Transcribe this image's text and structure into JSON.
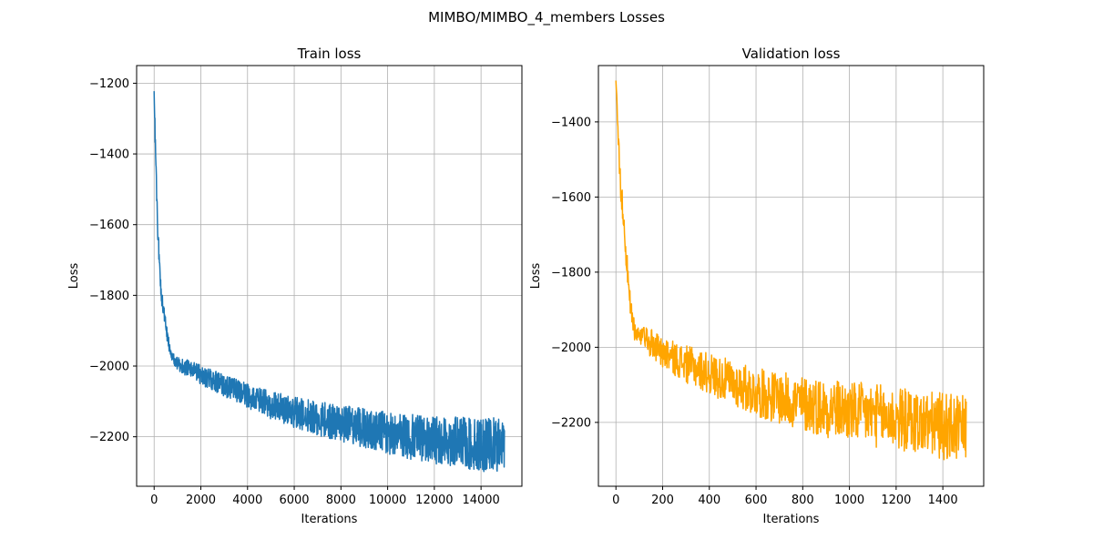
{
  "suptitle": "MIMBO/MIMBO_4_members Losses",
  "chart_data": [
    {
      "type": "line",
      "title": "Train loss",
      "xlabel": "Iterations",
      "ylabel": "Loss",
      "xlim": [
        -750,
        15750
      ],
      "ylim": [
        -2340,
        -1150
      ],
      "x_ticks": [
        0,
        2000,
        4000,
        6000,
        8000,
        10000,
        12000,
        14000
      ],
      "y_ticks": [
        -1200,
        -1400,
        -1600,
        -1800,
        -2000,
        -2200
      ],
      "x_tick_labels": [
        "0",
        "2000",
        "4000",
        "6000",
        "8000",
        "10000",
        "12000",
        "14000"
      ],
      "y_tick_labels": [
        "−1200",
        "−1400",
        "−1600",
        "−1800",
        "−2000",
        "−2200"
      ],
      "grid": true,
      "color": "#1f77b4",
      "series": [
        {
          "x": [
            0,
            30,
            60,
            100,
            150,
            200,
            300,
            400,
            500,
            600,
            700,
            800,
            900,
            1000,
            1200,
            1500,
            2000,
            2500,
            3000,
            3500,
            4000,
            4500,
            5000,
            5500,
            6000,
            6500,
            7000,
            7500,
            8000,
            8500,
            9000,
            9500,
            10000,
            10500,
            11000,
            11500,
            12000,
            12500,
            13000,
            13500,
            14000,
            14500,
            15000
          ],
          "y": [
            -1210,
            -1300,
            -1400,
            -1500,
            -1600,
            -1680,
            -1790,
            -1840,
            -1890,
            -1930,
            -1955,
            -1975,
            -1990,
            -1995,
            -2000,
            -2008,
            -2025,
            -2040,
            -2055,
            -2070,
            -2085,
            -2098,
            -2110,
            -2120,
            -2130,
            -2140,
            -2148,
            -2155,
            -2162,
            -2168,
            -2175,
            -2182,
            -2190,
            -2196,
            -2200,
            -2205,
            -2208,
            -2212,
            -2215,
            -2220,
            -2222,
            -2224,
            -2228
          ],
          "noise": [
            30,
            30,
            30,
            30,
            30,
            28,
            25,
            22,
            20,
            18,
            16,
            16,
            16,
            20,
            22,
            24,
            28,
            30,
            32,
            34,
            36,
            38,
            40,
            42,
            44,
            46,
            48,
            50,
            52,
            54,
            56,
            58,
            60,
            62,
            64,
            66,
            68,
            70,
            72,
            74,
            76,
            78,
            80
          ]
        }
      ]
    },
    {
      "type": "line",
      "title": "Validation loss",
      "xlabel": "Iterations",
      "ylabel": "Loss",
      "xlim": [
        -75,
        1575
      ],
      "ylim": [
        -2370,
        -1250
      ],
      "x_ticks": [
        0,
        200,
        400,
        600,
        800,
        1000,
        1200,
        1400
      ],
      "y_ticks": [
        -1400,
        -1600,
        -1800,
        -2000,
        -2200
      ],
      "x_tick_labels": [
        "0",
        "200",
        "400",
        "600",
        "800",
        "1000",
        "1200",
        "1400"
      ],
      "y_tick_labels": [
        "−1400",
        "−1600",
        "−1800",
        "−2000",
        "−2200"
      ],
      "grid": true,
      "color": "#ffa500",
      "series": [
        {
          "x": [
            0,
            5,
            10,
            20,
            30,
            40,
            50,
            60,
            70,
            80,
            100,
            150,
            200,
            250,
            300,
            400,
            500,
            600,
            700,
            800,
            900,
            1000,
            1100,
            1200,
            1300,
            1400,
            1500
          ],
          "y": [
            -1290,
            -1350,
            -1450,
            -1560,
            -1650,
            -1720,
            -1800,
            -1880,
            -1930,
            -1960,
            -1975,
            -1990,
            -2010,
            -2030,
            -2045,
            -2070,
            -2095,
            -2120,
            -2135,
            -2150,
            -2160,
            -2172,
            -2180,
            -2190,
            -2200,
            -2210,
            -2220
          ],
          "noise": [
            0,
            20,
            30,
            40,
            40,
            40,
            35,
            35,
            30,
            30,
            30,
            40,
            45,
            45,
            50,
            55,
            60,
            65,
            70,
            75,
            80,
            80,
            85,
            85,
            85,
            90,
            90
          ]
        }
      ]
    }
  ]
}
